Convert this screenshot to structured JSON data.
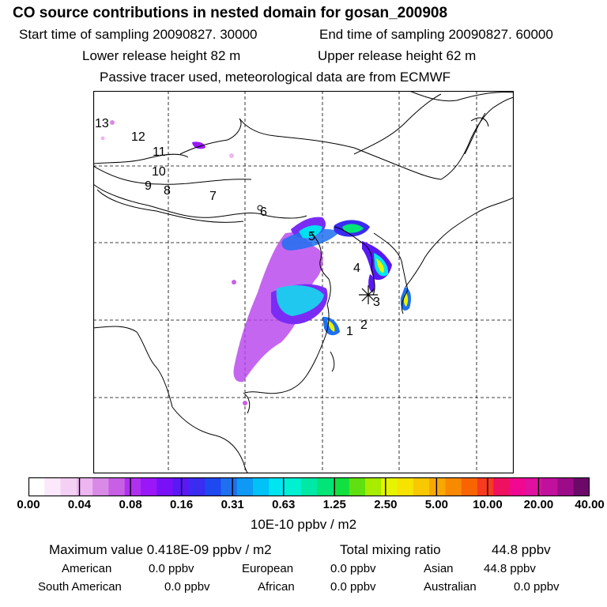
{
  "title": "CO  source contributions in nested domain for gosan_200908",
  "header": {
    "start": "Start time of sampling 20090827. 30000",
    "end": "End time of sampling 20090827. 60000",
    "lower": "Lower release height   82 m",
    "upper": "Upper release height   62 m",
    "tracer": "Passive tracer used, meteorological data are from ECMWF"
  },
  "map": {
    "trajectory_labels": [
      "13",
      "12",
      "11",
      "10",
      "9",
      "8",
      "7",
      "6",
      "5",
      "4",
      "3",
      "2",
      "1"
    ]
  },
  "colorbar": {
    "ticks": [
      "0.00",
      "0.04",
      "0.08",
      "0.16",
      "0.31",
      "0.63",
      "1.25",
      "2.50",
      "5.00",
      "10.00",
      "20.00",
      "40.00"
    ],
    "colors": [
      "#ffffff",
      "#fbe8fb",
      "#f5d0f5",
      "#eeb6f0",
      "#d98ae6",
      "#c860e6",
      "#b030f0",
      "#9a18f8",
      "#7a10f8",
      "#5a18f4",
      "#3a2cf0",
      "#1e48f0",
      "#1e70f0",
      "#0e9af4",
      "#00c2f6",
      "#00e6f0",
      "#00f0d2",
      "#00e8a6",
      "#00e478",
      "#10e040",
      "#60e010",
      "#a8ec00",
      "#e6f400",
      "#f6e400",
      "#f8c800",
      "#f8a800",
      "#f88a00",
      "#f86400",
      "#f83a20",
      "#f01060",
      "#f00890",
      "#e010a0",
      "#c0109c",
      "#9c0c88",
      "#6c0868"
    ],
    "units": "10E-10 ppbv / m2"
  },
  "stats": {
    "max_label": "Maximum value  0.418E-09 ppbv / m2",
    "total_label": "Total mixing ratio",
    "total_value": "44.8 ppbv",
    "regions": [
      {
        "name": "American",
        "value": "0.0 ppbv"
      },
      {
        "name": "European",
        "value": "0.0 ppbv"
      },
      {
        "name": "Asian",
        "value": "44.8 ppbv"
      },
      {
        "name": "South American",
        "value": "0.0 ppbv"
      },
      {
        "name": "African",
        "value": "0.0 ppbv"
      },
      {
        "name": "Australian",
        "value": "0.0 ppbv"
      }
    ]
  }
}
